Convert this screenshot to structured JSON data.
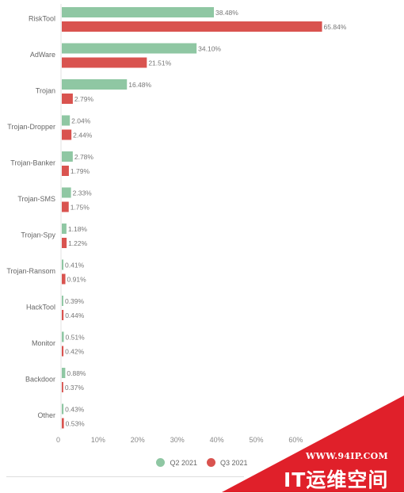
{
  "chart_data": {
    "type": "bar",
    "orientation": "horizontal",
    "categories": [
      "RiskTool",
      "AdWare",
      "Trojan",
      "Trojan-Dropper",
      "Trojan-Banker",
      "Trojan-SMS",
      "Trojan-Spy",
      "Trojan-Ransom",
      "HackTool",
      "Monitor",
      "Backdoor",
      "Other"
    ],
    "series": [
      {
        "name": "Q2 2021",
        "color": "#8fc7a3",
        "values": [
          38.48,
          34.1,
          16.48,
          2.04,
          2.78,
          2.33,
          1.18,
          0.41,
          0.39,
          0.51,
          0.88,
          0.43
        ],
        "labels": [
          "38.48%",
          "34.10%",
          "16.48%",
          "2.04%",
          "2.78%",
          "2.33%",
          "1.18%",
          "0.41%",
          "0.39%",
          "0.51%",
          "0.88%",
          "0.43%"
        ]
      },
      {
        "name": "Q3 2021",
        "color": "#d9534f",
        "values": [
          65.84,
          21.51,
          2.79,
          2.44,
          1.79,
          1.75,
          1.22,
          0.91,
          0.44,
          0.42,
          0.37,
          0.53
        ],
        "labels": [
          "65.84%",
          "21.51%",
          "2.79%",
          "2.44%",
          "1.79%",
          "1.75%",
          "1.22%",
          "0.91%",
          "0.44%",
          "0.42%",
          "0.37%",
          "0.53%"
        ]
      }
    ],
    "x_ticks": [
      "0",
      "10%",
      "20%",
      "30%",
      "40%",
      "50%",
      "60%"
    ],
    "xlim": [
      0,
      70
    ],
    "grid": false,
    "legend_position": "bottom-center"
  },
  "watermark": {
    "url": "WWW.94IP.COM",
    "brand": "IT运维空间",
    "color": "#e0202a"
  }
}
